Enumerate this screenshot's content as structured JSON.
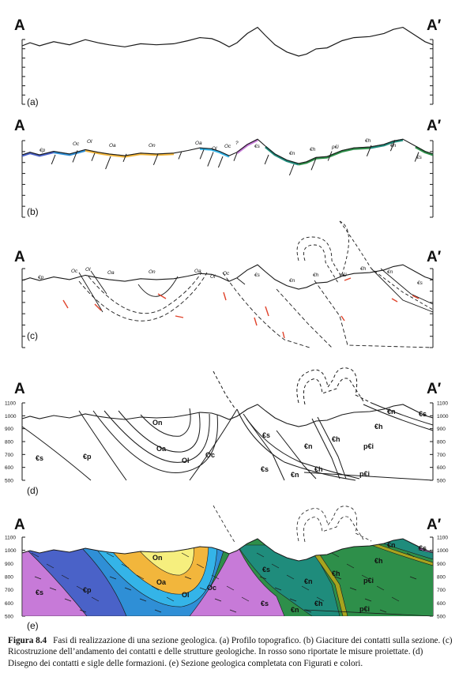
{
  "endpoints": {
    "left": "A",
    "right": "A′"
  },
  "panels": [
    {
      "id": "a",
      "label": "(a)"
    },
    {
      "id": "b",
      "label": "(b)"
    },
    {
      "id": "c",
      "label": "(c)"
    },
    {
      "id": "d",
      "label": "(d)"
    },
    {
      "id": "e",
      "label": "(e)"
    }
  ],
  "contact_labels": [
    "€p",
    "Oc",
    "Ol",
    "Oa",
    "On",
    "Oa",
    "Ol",
    "Oc",
    "?",
    "€s",
    "€n",
    "€h",
    "p€i",
    "€h",
    "€n",
    "€s"
  ],
  "formation_labels": [
    "On",
    "Oa",
    "Ol",
    "Oc",
    "€p",
    "€s",
    "€s",
    "€s",
    "€n",
    "€n",
    "€h",
    "€h",
    "€h",
    "p€i",
    "p€i",
    "€n",
    "€s"
  ],
  "elevation_ticks": [
    "1100",
    "1000",
    "900",
    "800",
    "700",
    "600",
    "500"
  ],
  "colors": {
    "line": "#1a1a1a",
    "red_measure": "#e0432b",
    "Cs": "#c77ad8",
    "Cp": "#4a62c8",
    "Oc": "#2f8fd6",
    "Ol": "#34b4e8",
    "Oa": "#f2b63c",
    "On": "#f6ef7e",
    "Cn": "#1f8c7c",
    "Ch": "#2e8f4a",
    "pCi": "#3a8a3e",
    "band": "#a7a41e"
  },
  "caption": {
    "figure": "Figura 8.4",
    "text": "Fasi di realizzazione di una sezione geologica. (a) Profilo topografico. (b) Giaciture dei contatti sulla sezione. (c) Ricostruzione dell’andamento dei contatti e delle strutture geologiche. In rosso sono riportate le misure proiettate. (d) Disegno dei contatti e sigle delle formazioni. (e) Sezione geologica completata con Figurati e colori."
  }
}
